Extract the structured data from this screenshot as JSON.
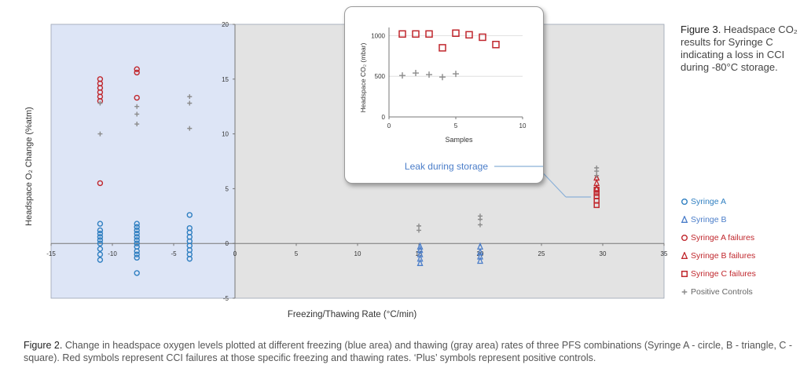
{
  "colors": {
    "freeze_area": "#dde5f6",
    "thaw_area": "#e3e3e3",
    "syringe_a": "#2f7fc1",
    "syringe_b": "#4a7dc9",
    "failures": "#c0272d",
    "controls": "#8c8c8c"
  },
  "chart_data": [
    {
      "type": "scatter",
      "title": "",
      "xlabel": "Freezing/Thawing Rate (°C/min)",
      "ylabel": "Headspace O₂ Change (%atm)",
      "xlim": [
        -15,
        35
      ],
      "ylim": [
        -5,
        20
      ],
      "x_ticks": [
        -15,
        -10,
        -5,
        0,
        5,
        10,
        15,
        20,
        25,
        30,
        35
      ],
      "y_ticks": [
        -5,
        0,
        5,
        10,
        15,
        20
      ],
      "regions": [
        {
          "name": "freezing",
          "x_range": [
            -15,
            0
          ],
          "color": "blue"
        },
        {
          "name": "thawing",
          "x_range": [
            0,
            35
          ],
          "color": "gray"
        }
      ],
      "legend_position": "right",
      "series": [
        {
          "name": "Syringe A",
          "marker": "circle",
          "color": "#2f7fc1",
          "points": [
            [
              -11,
              -1.5
            ],
            [
              -11,
              -1
            ],
            [
              -11,
              -0.5
            ],
            [
              -11,
              0
            ],
            [
              -11,
              0.3
            ],
            [
              -11,
              0.6
            ],
            [
              -11,
              0.9
            ],
            [
              -11,
              1.2
            ],
            [
              -11,
              1.8
            ],
            [
              -8,
              -2.7
            ],
            [
              -8,
              -1.3
            ],
            [
              -8,
              -1
            ],
            [
              -8,
              -0.7
            ],
            [
              -8,
              -0.3
            ],
            [
              -8,
              0
            ],
            [
              -8,
              0.3
            ],
            [
              -8,
              0.6
            ],
            [
              -8,
              0.9
            ],
            [
              -8,
              1.2
            ],
            [
              -8,
              1.5
            ],
            [
              -8,
              1.8
            ],
            [
              -3.7,
              -1.4
            ],
            [
              -3.7,
              -1
            ],
            [
              -3.7,
              -0.6
            ],
            [
              -3.7,
              -0.2
            ],
            [
              -3.7,
              0.2
            ],
            [
              -3.7,
              0.6
            ],
            [
              -3.7,
              1
            ],
            [
              -3.7,
              1.4
            ],
            [
              -3.7,
              2.6
            ]
          ]
        },
        {
          "name": "Syringe B",
          "marker": "triangle",
          "color": "#4a7dc9",
          "points": [
            [
              15.1,
              -1.8
            ],
            [
              15.1,
              -1.4
            ],
            [
              15.1,
              -1
            ],
            [
              15.1,
              -0.6
            ],
            [
              15.1,
              -0.3
            ],
            [
              20,
              -1.6
            ],
            [
              20,
              -1.2
            ],
            [
              20,
              -0.8
            ],
            [
              20,
              -0.3
            ]
          ]
        },
        {
          "name": "Syringe A failures",
          "marker": "circle",
          "color": "#c0272d",
          "points": [
            [
              -11,
              5.5
            ],
            [
              -11,
              13
            ],
            [
              -11,
              13.4
            ],
            [
              -11,
              13.8
            ],
            [
              -11,
              14.2
            ],
            [
              -11,
              14.6
            ],
            [
              -11,
              15
            ],
            [
              -8,
              13.3
            ],
            [
              -8,
              15.6
            ],
            [
              -8,
              15.9
            ]
          ]
        },
        {
          "name": "Syringe B failures",
          "marker": "triangle",
          "color": "#c0272d",
          "points": [
            [
              29.5,
              5
            ],
            [
              29.5,
              5.5
            ],
            [
              29.5,
              6
            ]
          ]
        },
        {
          "name": "Syringe C failures",
          "marker": "square",
          "color": "#c0272d",
          "points": [
            [
              29.5,
              3.5
            ],
            [
              29.5,
              3.9
            ],
            [
              29.5,
              4.3
            ],
            [
              29.5,
              4.6
            ],
            [
              29.5,
              4.9
            ]
          ]
        },
        {
          "name": "Positive Controls",
          "marker": "plus",
          "color": "#8c8c8c",
          "points": [
            [
              -11,
              10
            ],
            [
              -11,
              12.8
            ],
            [
              -8,
              10.9
            ],
            [
              -8,
              11.8
            ],
            [
              -8,
              12.5
            ],
            [
              -3.7,
              10.5
            ],
            [
              -3.7,
              12.8
            ],
            [
              -3.7,
              13.4
            ],
            [
              15,
              1.2
            ],
            [
              15,
              1.6
            ],
            [
              20,
              1.7
            ],
            [
              20,
              2.2
            ],
            [
              20,
              2.5
            ],
            [
              29.5,
              6.2
            ],
            [
              29.5,
              6.6
            ],
            [
              29.5,
              6.9
            ]
          ]
        }
      ]
    },
    {
      "type": "scatter",
      "title": "",
      "xlabel": "Samples",
      "ylabel": "Headspace CO₂ (mbar)",
      "xlim": [
        0,
        10
      ],
      "ylim": [
        0,
        1100
      ],
      "x_ticks": [
        0,
        5,
        10
      ],
      "y_ticks": [
        0,
        500,
        1000
      ],
      "annotation": "Leak during storage",
      "series": [
        {
          "name": "Syringe C",
          "marker": "square",
          "color": "#c0272d",
          "points": [
            [
              1,
              1020
            ],
            [
              2,
              1020
            ],
            [
              3,
              1020
            ],
            [
              4,
              850
            ],
            [
              5,
              1030
            ],
            [
              6,
              1010
            ],
            [
              7,
              980
            ],
            [
              8,
              890
            ]
          ]
        },
        {
          "name": "Positive Controls",
          "marker": "plus",
          "color": "#8c8c8c",
          "points": [
            [
              1,
              510
            ],
            [
              2,
              540
            ],
            [
              3,
              520
            ],
            [
              4,
              490
            ],
            [
              5,
              530
            ]
          ]
        }
      ]
    }
  ],
  "legend": [
    {
      "label": "Syringe A",
      "marker": "circle",
      "color": "#2f7fc1"
    },
    {
      "label": "Syringe B",
      "marker": "triangle",
      "color": "#4a7dc9"
    },
    {
      "label": "Syringe A failures",
      "marker": "circle",
      "color": "#c0272d"
    },
    {
      "label": "Syringe B failures",
      "marker": "triangle",
      "color": "#c0272d"
    },
    {
      "label": "Syringe C failures",
      "marker": "square",
      "color": "#c0272d"
    },
    {
      "label": "Positive Controls",
      "marker": "plus",
      "color": "#8c8c8c"
    }
  ],
  "figure3": {
    "label": "Figure 3.",
    "text": " Headspace CO₂ results for Syringe C indicating a loss in CCI during -80°C storage."
  },
  "figure2": {
    "label": "Figure 2.",
    "text": " Change in headspace oxygen levels plotted at different freezing (blue area) and thawing (gray area) rates of three PFS combinations (Syringe A - circle, B - triangle, C - square). Red symbols represent CCI failures at those specific freezing and thawing rates. ‘Plus’ symbols represent positive controls."
  }
}
